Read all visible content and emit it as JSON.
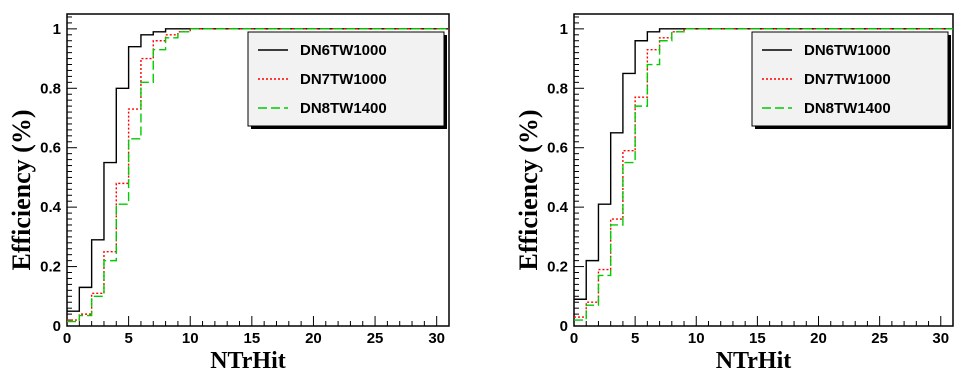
{
  "chart_data": [
    {
      "type": "line",
      "step": true,
      "xlabel": "NTrHit",
      "ylabel": "Efficiency (%)",
      "xlim": [
        0,
        31
      ],
      "ylim": [
        0,
        1.05
      ],
      "xticks": [
        0,
        5,
        10,
        15,
        20,
        25,
        30
      ],
      "yticks": [
        0,
        0.2,
        0.4,
        0.6,
        0.8,
        1
      ],
      "xtick_labels": [
        "0",
        "5",
        "10",
        "15",
        "20",
        "25",
        "30"
      ],
      "ytick_labels": [
        "0",
        "0.2",
        "0.4",
        "0.6",
        "0.8",
        "1"
      ],
      "legend_position": "top-right",
      "x": [
        0,
        1,
        2,
        3,
        4,
        5,
        6,
        7,
        8,
        9,
        10,
        11,
        12,
        13,
        14,
        15,
        16,
        17,
        18,
        19,
        20,
        21,
        22,
        23,
        24,
        25,
        26,
        27,
        28,
        29,
        30
      ],
      "series": [
        {
          "name": "DN6TW1000",
          "color": "#000000",
          "dash": "solid",
          "values": [
            0.05,
            0.13,
            0.29,
            0.55,
            0.8,
            0.94,
            0.98,
            0.99,
            1.0,
            1.0,
            1.0,
            1.0,
            1.0,
            1.0,
            1.0,
            1.0,
            1.0,
            1.0,
            1.0,
            1.0,
            1.0,
            1.0,
            1.0,
            1.0,
            1.0,
            1.0,
            1.0,
            1.0,
            1.0,
            1.0,
            1.0
          ]
        },
        {
          "name": "DN7TW1000",
          "color": "#ff0000",
          "dash": "dotted",
          "values": [
            0.02,
            0.04,
            0.11,
            0.25,
            0.48,
            0.73,
            0.9,
            0.96,
            0.98,
            0.99,
            1.0,
            1.0,
            1.0,
            1.0,
            1.0,
            1.0,
            1.0,
            1.0,
            1.0,
            1.0,
            1.0,
            1.0,
            1.0,
            1.0,
            1.0,
            1.0,
            1.0,
            1.0,
            1.0,
            1.0,
            1.0
          ]
        },
        {
          "name": "DN8TW1400",
          "color": "#00cc00",
          "dash": "dashed",
          "values": [
            0.015,
            0.035,
            0.1,
            0.22,
            0.41,
            0.63,
            0.82,
            0.93,
            0.97,
            0.99,
            1.0,
            1.0,
            1.0,
            1.0,
            1.0,
            1.0,
            1.0,
            1.0,
            1.0,
            1.0,
            1.0,
            1.0,
            1.0,
            1.0,
            1.0,
            1.0,
            1.0,
            1.0,
            1.0,
            1.0,
            1.0
          ]
        }
      ]
    },
    {
      "type": "line",
      "step": true,
      "xlabel": "NTrHit",
      "ylabel": "Efficiency (%)",
      "xlim": [
        0,
        31
      ],
      "ylim": [
        0,
        1.05
      ],
      "xticks": [
        0,
        5,
        10,
        15,
        20,
        25,
        30
      ],
      "yticks": [
        0,
        0.2,
        0.4,
        0.6,
        0.8,
        1
      ],
      "xtick_labels": [
        "0",
        "5",
        "10",
        "15",
        "20",
        "25",
        "30"
      ],
      "ytick_labels": [
        "0",
        "0.2",
        "0.4",
        "0.6",
        "0.8",
        "1"
      ],
      "legend_position": "top-right",
      "x": [
        0,
        1,
        2,
        3,
        4,
        5,
        6,
        7,
        8,
        9,
        10,
        11,
        12,
        13,
        14,
        15,
        16,
        17,
        18,
        19,
        20,
        21,
        22,
        23,
        24,
        25,
        26,
        27,
        28,
        29,
        30
      ],
      "series": [
        {
          "name": "DN6TW1000",
          "color": "#000000",
          "dash": "solid",
          "values": [
            0.09,
            0.22,
            0.41,
            0.65,
            0.85,
            0.96,
            0.99,
            1.0,
            1.0,
            1.0,
            1.0,
            1.0,
            1.0,
            1.0,
            1.0,
            1.0,
            1.0,
            1.0,
            1.0,
            1.0,
            1.0,
            1.0,
            1.0,
            1.0,
            1.0,
            1.0,
            1.0,
            1.0,
            1.0,
            1.0,
            1.0
          ]
        },
        {
          "name": "DN7TW1000",
          "color": "#ff0000",
          "dash": "dotted",
          "values": [
            0.03,
            0.08,
            0.19,
            0.36,
            0.59,
            0.77,
            0.93,
            0.97,
            0.99,
            1.0,
            1.0,
            1.0,
            1.0,
            1.0,
            1.0,
            1.0,
            1.0,
            1.0,
            1.0,
            1.0,
            1.0,
            1.0,
            1.0,
            1.0,
            1.0,
            1.0,
            1.0,
            1.0,
            1.0,
            1.0,
            1.0
          ]
        },
        {
          "name": "DN8TW1400",
          "color": "#00cc00",
          "dash": "dashed",
          "values": [
            0.02,
            0.07,
            0.17,
            0.34,
            0.55,
            0.74,
            0.88,
            0.96,
            0.99,
            1.0,
            1.0,
            1.0,
            1.0,
            1.0,
            1.0,
            1.0,
            1.0,
            1.0,
            1.0,
            1.0,
            1.0,
            1.0,
            1.0,
            1.0,
            1.0,
            1.0,
            1.0,
            1.0,
            1.0,
            1.0,
            1.0
          ]
        }
      ]
    }
  ]
}
